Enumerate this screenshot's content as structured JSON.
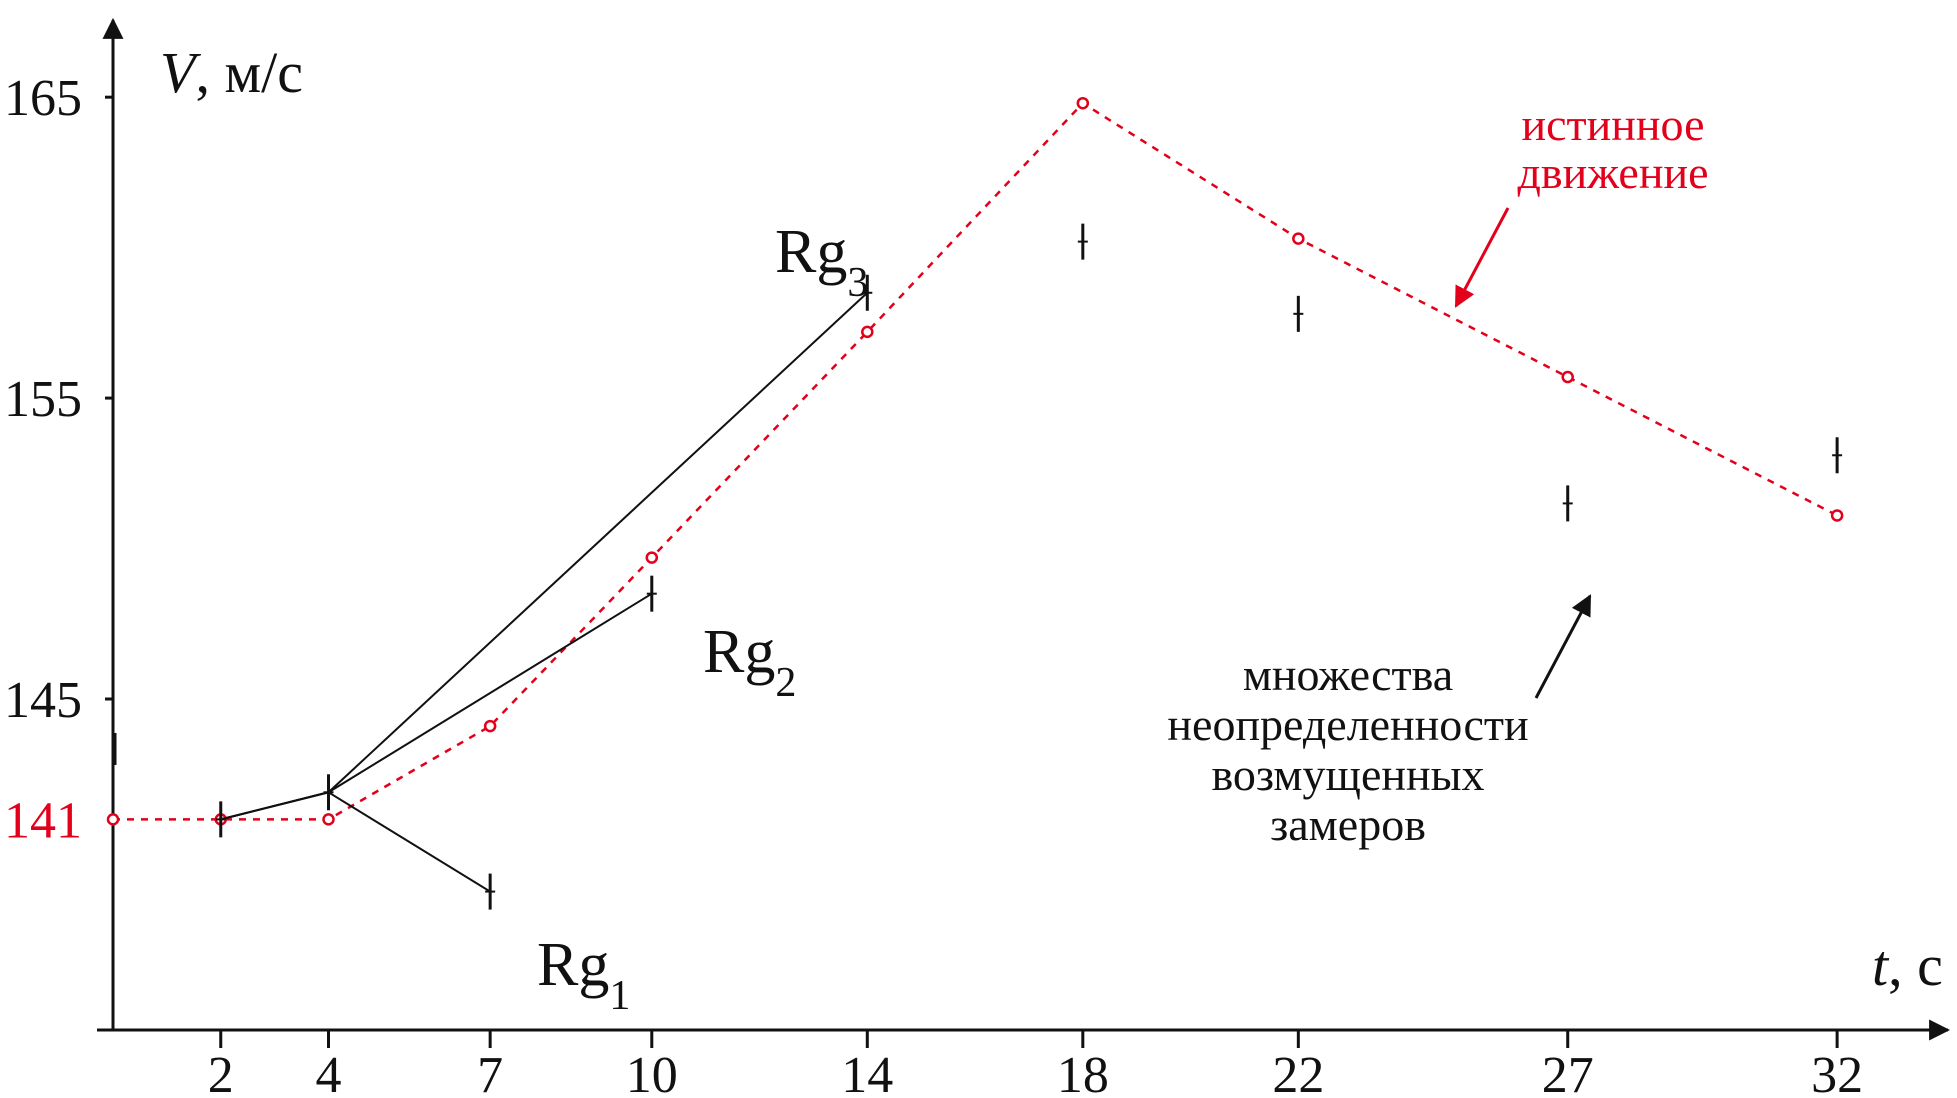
{
  "chart_data": {
    "type": "line",
    "x_axis": {
      "label": "t",
      "unit": ", с",
      "ticks": [
        "2",
        "4",
        "7",
        "10",
        "14",
        "18",
        "22",
        "27",
        "32"
      ],
      "range": [
        0,
        33
      ]
    },
    "y_axis": {
      "label": "V",
      "unit": ", м/с",
      "ticks": [
        "145",
        "155",
        "165"
      ],
      "highlight_tick": "141",
      "range": [
        134,
        167
      ]
    },
    "series": [
      {
        "name": "истинное движение",
        "style": "dashed-with-circle-markers",
        "x": [
          0,
          2,
          4,
          7,
          10,
          14,
          18,
          22,
          27,
          32
        ],
        "y": [
          141,
          141,
          141,
          144.1,
          149.7,
          157.2,
          164.8,
          160.3,
          155.7,
          151.1
        ]
      },
      {
        "name": "Rg1",
        "x": [
          2,
          4,
          7
        ],
        "y": [
          141,
          141.9,
          138.6
        ]
      },
      {
        "name": "Rg2",
        "x": [
          2,
          4,
          10
        ],
        "y": [
          141,
          141.9,
          148.5
        ]
      },
      {
        "name": "Rg3",
        "x": [
          2,
          4,
          14
        ],
        "y": [
          141,
          141.9,
          158.5
        ]
      }
    ],
    "uncertainty_sets": {
      "x": [
        2,
        4,
        7,
        10,
        14,
        18,
        22,
        27,
        32
      ],
      "y": [
        141,
        141.9,
        138.6,
        148.5,
        158.5,
        160.2,
        157.8,
        151.5,
        153.1
      ]
    },
    "annotations": {
      "true_motion": [
        "истинное",
        "движение"
      ],
      "uncertainty": [
        "множества",
        "неопределенности",
        "возмущенных",
        "замеров"
      ]
    },
    "colors": {
      "true_motion": "#e3001b",
      "measured": "#111111"
    }
  }
}
